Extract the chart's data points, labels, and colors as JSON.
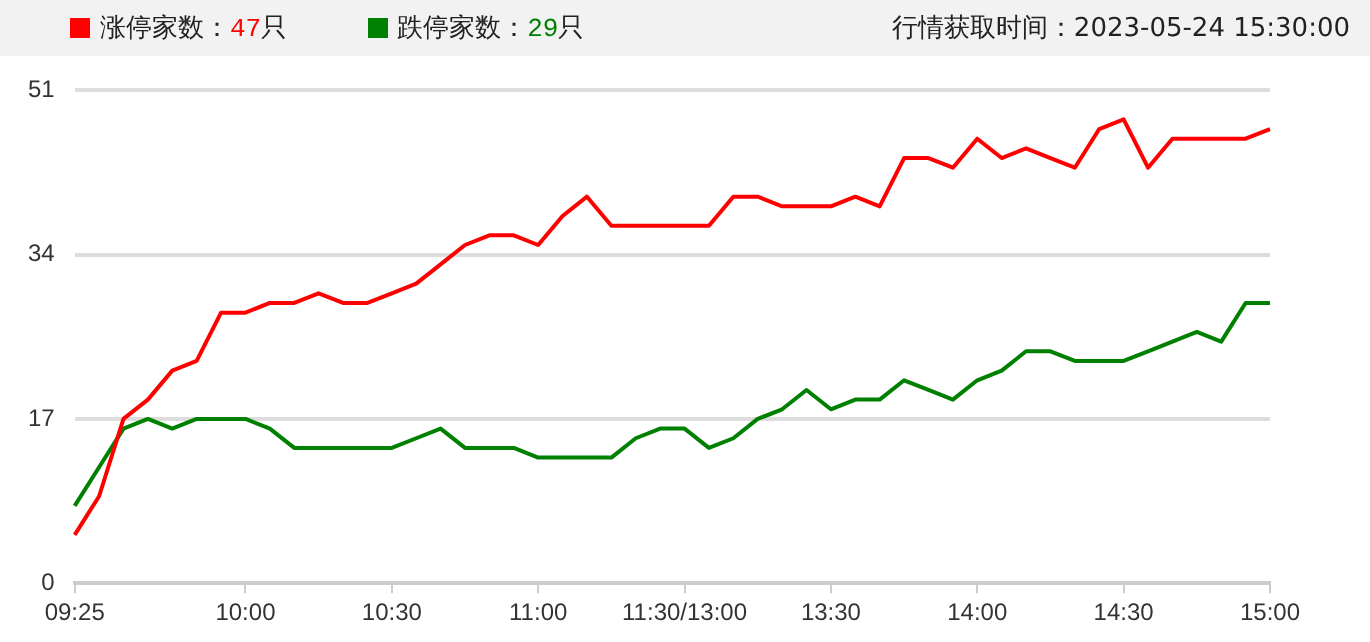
{
  "chart_data": {
    "type": "line",
    "subtitle": "行情获取时间：2023-05-24 15:30:00",
    "categories": [
      "09:25",
      null,
      null,
      null,
      null,
      null,
      null,
      "10:00",
      null,
      null,
      null,
      null,
      null,
      "10:30",
      null,
      null,
      null,
      null,
      null,
      "11:00",
      null,
      null,
      null,
      null,
      null,
      "11:30/13:00",
      null,
      null,
      null,
      null,
      null,
      "13:30",
      null,
      null,
      null,
      null,
      null,
      "14:00",
      null,
      null,
      null,
      null,
      null,
      "14:30",
      null,
      null,
      null,
      null,
      null,
      "15:00"
    ],
    "series": [
      {
        "name": "涨停家数：47只",
        "color": "#ff0000",
        "values": [
          5,
          9,
          17,
          19,
          22,
          23,
          28,
          28,
          29,
          29,
          30,
          29,
          29,
          30,
          31,
          33,
          35,
          36,
          36,
          35,
          38,
          40,
          37,
          37,
          37,
          37,
          37,
          40,
          40,
          39,
          39,
          39,
          40,
          39,
          44,
          44,
          43,
          46,
          44,
          45,
          44,
          43,
          47,
          48,
          43,
          46,
          46,
          46,
          46,
          47
        ]
      },
      {
        "name": "跌停家数：29只",
        "color": "#008000",
        "values": [
          8,
          12,
          16,
          17,
          16,
          17,
          17,
          17,
          16,
          14,
          14,
          14,
          14,
          14,
          15,
          16,
          14,
          14,
          14,
          13,
          13,
          13,
          13,
          15,
          16,
          16,
          14,
          15,
          17,
          18,
          20,
          18,
          19,
          19,
          21,
          20,
          19,
          21,
          22,
          24,
          24,
          23,
          23,
          23,
          24,
          25,
          26,
          25,
          29,
          29
        ]
      }
    ],
    "ylim": [
      0,
      51
    ],
    "yticks": [
      0,
      17,
      34,
      51
    ],
    "grid": "y",
    "legend": "top left",
    "marker": "none",
    "line_style": "solid"
  }
}
